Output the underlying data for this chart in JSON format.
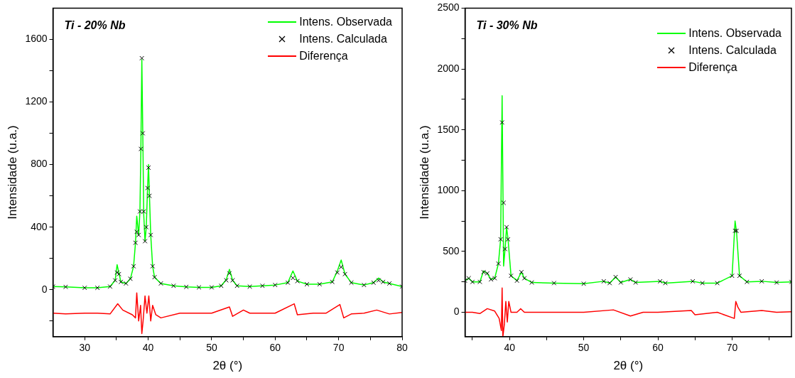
{
  "chart_data": [
    {
      "type": "line",
      "title": "Ti - 20% Nb",
      "xlabel": "2θ (°)",
      "ylabel": "Intensidade (u.a.)",
      "xlim": [
        25,
        80
      ],
      "xticks": [
        30,
        {
          "value": 35,
          "label": null
        },
        40,
        {
          "value": 45,
          "label": null
        },
        50,
        {
          "value": 55,
          "label": null
        },
        60,
        {
          "value": 65,
          "label": null
        },
        70,
        {
          "value": 75,
          "label": null
        },
        80
      ],
      "ylim": [
        -300,
        1800
      ],
      "yticks": [
        {
          "value": -200,
          "label": null
        },
        0,
        {
          "value": 200,
          "label": null
        },
        400,
        {
          "value": 600,
          "label": null
        },
        800,
        {
          "value": 1000,
          "label": null
        },
        1200,
        {
          "value": 1400,
          "label": null
        },
        1600
      ],
      "grid": false,
      "legend": "top right",
      "series": [
        {
          "name": "Intens. Observada",
          "type": "line",
          "color": "#00ff00",
          "marker": "none",
          "x": [
            25,
            27,
            30,
            32,
            34,
            34.8,
            35.1,
            35.4,
            35.7,
            36.5,
            37.2,
            37.7,
            38.0,
            38.2,
            38.5,
            38.7,
            38.85,
            39.0,
            39.15,
            39.3,
            39.5,
            39.7,
            39.9,
            40.05,
            40.2,
            40.4,
            40.7,
            41.0,
            42,
            44,
            46,
            48,
            50,
            51.5,
            52.3,
            52.8,
            53.3,
            54,
            56,
            58,
            60,
            62,
            62.8,
            63.5,
            65,
            67,
            69,
            69.8,
            70.4,
            71,
            72,
            74,
            75.5,
            76.3,
            77,
            78,
            80
          ],
          "values": [
            20,
            18,
            12,
            12,
            20,
            60,
            160,
            105,
            50,
            40,
            70,
            150,
            300,
            470,
            350,
            500,
            900,
            1470,
            1000,
            480,
            310,
            400,
            650,
            800,
            600,
            350,
            150,
            80,
            40,
            25,
            18,
            15,
            15,
            25,
            65,
            130,
            60,
            25,
            20,
            25,
            30,
            45,
            120,
            55,
            35,
            35,
            50,
            120,
            190,
            100,
            45,
            30,
            45,
            75,
            50,
            40,
            20
          ]
        },
        {
          "name": "Intens. Calculada",
          "type": "scatter",
          "color": "#000000",
          "marker": "cross",
          "x": [
            25,
            27,
            30,
            32,
            34,
            34.8,
            35.1,
            35.4,
            35.7,
            36.5,
            37.2,
            37.7,
            38.0,
            38.2,
            38.5,
            38.7,
            38.85,
            39.0,
            39.15,
            39.3,
            39.5,
            39.7,
            39.9,
            40.05,
            40.2,
            40.4,
            40.7,
            41.0,
            42,
            44,
            46,
            48,
            50,
            51.5,
            52.3,
            52.8,
            53.3,
            54,
            56,
            58,
            60,
            62,
            62.8,
            63.5,
            65,
            67,
            69,
            69.8,
            70.4,
            71,
            72,
            74,
            75.5,
            76.3,
            77,
            78,
            80
          ],
          "values": [
            20,
            18,
            12,
            12,
            20,
            60,
            110,
            100,
            50,
            40,
            70,
            150,
            300,
            370,
            350,
            500,
            900,
            1480,
            1000,
            500,
            310,
            400,
            650,
            780,
            600,
            350,
            150,
            80,
            40,
            25,
            18,
            15,
            15,
            25,
            60,
            105,
            60,
            25,
            20,
            25,
            30,
            45,
            75,
            55,
            35,
            35,
            50,
            110,
            145,
            100,
            45,
            30,
            45,
            60,
            50,
            40,
            20
          ]
        },
        {
          "name": "Diferença",
          "type": "line",
          "color": "#ff0000",
          "marker": "none",
          "x": [
            25,
            27,
            30,
            32,
            34,
            35.2,
            36,
            37.5,
            38.0,
            38.2,
            38.5,
            38.8,
            39.0,
            39.2,
            39.5,
            39.8,
            40.1,
            40.4,
            40.7,
            41.2,
            42,
            45,
            47,
            50,
            52.8,
            53.3,
            55,
            56,
            58,
            60,
            63,
            63.5,
            66,
            68,
            70.2,
            70.8,
            72,
            74,
            76,
            78,
            80
          ],
          "values": [
            -150,
            -155,
            -150,
            -150,
            -155,
            -90,
            -130,
            -160,
            -180,
            -20,
            -200,
            -100,
            -280,
            -200,
            -40,
            -150,
            -40,
            -200,
            -100,
            -160,
            -180,
            -150,
            -150,
            -150,
            -110,
            -170,
            -130,
            -150,
            -150,
            -150,
            -90,
            -160,
            -150,
            -150,
            -95,
            -180,
            -155,
            -150,
            -130,
            -155,
            -145
          ]
        }
      ]
    },
    {
      "type": "line",
      "title": "Ti - 30% Nb",
      "xlabel": "2θ (°)",
      "ylabel": "Intensidade (u.a.)",
      "xlim": [
        34,
        78
      ],
      "xticks": [
        {
          "value": 35,
          "label": null
        },
        40,
        {
          "value": 45,
          "label": null
        },
        50,
        {
          "value": 55,
          "label": null
        },
        60,
        {
          "value": 65,
          "label": null
        },
        70,
        {
          "value": 75,
          "label": null
        }
      ],
      "ylim": [
        -200,
        2500
      ],
      "yticks": [
        0,
        {
          "value": 250,
          "label": null
        },
        500,
        {
          "value": 750,
          "label": null
        },
        1000,
        {
          "value": 1250,
          "label": null
        },
        1500,
        {
          "value": 1750,
          "label": null
        },
        2000,
        {
          "value": 2250,
          "label": null
        },
        2500
      ],
      "grid": false,
      "legend": "top right",
      "series": [
        {
          "name": "Intens. Observada",
          "type": "line",
          "color": "#00ff00",
          "marker": "none",
          "x": [
            34,
            34.5,
            35,
            36,
            36.5,
            37,
            37.5,
            38,
            38.5,
            38.8,
            39.0,
            39.2,
            39.4,
            39.6,
            39.8,
            40.2,
            41,
            41.6,
            42,
            43,
            46,
            50,
            52.7,
            53.5,
            54.3,
            55,
            56.3,
            57,
            60.3,
            61,
            64.7,
            66,
            68,
            70.0,
            70.4,
            70.6,
            71,
            72,
            74,
            76,
            78
          ],
          "values": [
            260,
            280,
            250,
            250,
            340,
            320,
            270,
            280,
            400,
            600,
            1780,
            380,
            520,
            700,
            600,
            300,
            260,
            330,
            280,
            245,
            240,
            235,
            255,
            240,
            290,
            245,
            270,
            245,
            255,
            240,
            255,
            240,
            240,
            300,
            750,
            660,
            300,
            250,
            255,
            245,
            250
          ]
        },
        {
          "name": "Intens. Calculada",
          "type": "scatter",
          "color": "#000000",
          "marker": "cross",
          "x": [
            34,
            34.5,
            35,
            36,
            36.5,
            37,
            37.5,
            38,
            38.5,
            38.8,
            39.0,
            39.2,
            39.4,
            39.6,
            39.8,
            40.2,
            41,
            41.6,
            42,
            43,
            46,
            50,
            52.7,
            53.5,
            54.3,
            55,
            56.3,
            57,
            60.3,
            61,
            64.7,
            66,
            68,
            70.0,
            70.4,
            70.6,
            71,
            72,
            74,
            76,
            78
          ],
          "values": [
            260,
            280,
            250,
            250,
            330,
            320,
            270,
            280,
            400,
            600,
            1560,
            900,
            520,
            700,
            600,
            300,
            260,
            330,
            280,
            245,
            240,
            235,
            255,
            240,
            290,
            245,
            270,
            245,
            255,
            240,
            255,
            240,
            240,
            300,
            670,
            670,
            300,
            250,
            255,
            245,
            250
          ]
        },
        {
          "name": "Diferença",
          "type": "line",
          "color": "#ff0000",
          "marker": "none",
          "x": [
            34,
            35,
            36,
            37,
            38,
            38.6,
            38.9,
            39.0,
            39.1,
            39.3,
            39.5,
            39.7,
            39.9,
            40.2,
            41,
            41.5,
            42,
            46,
            50,
            54,
            56.3,
            58,
            60,
            64.5,
            65,
            68,
            70.3,
            70.5,
            70.8,
            71.2,
            74,
            76,
            78
          ],
          "values": [
            0,
            0,
            -10,
            30,
            10,
            -50,
            -150,
            200,
            -200,
            -100,
            90,
            -80,
            90,
            0,
            0,
            30,
            0,
            0,
            0,
            20,
            -30,
            0,
            0,
            15,
            -20,
            0,
            -50,
            90,
            40,
            0,
            15,
            0,
            5
          ]
        }
      ]
    }
  ]
}
